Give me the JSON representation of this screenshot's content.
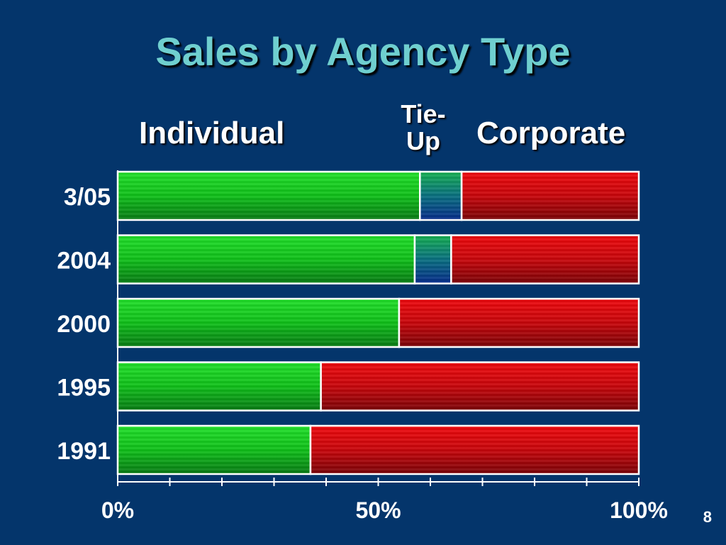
{
  "slide": {
    "title": "Sales by Agency Type",
    "page_number": "8"
  },
  "legend": {
    "individual": "Individual",
    "tieup_line1": "Tie-",
    "tieup_line2": "Up",
    "corporate": "Corporate"
  },
  "colors": {
    "background": "#04356b",
    "title": "#6fcfcf",
    "individual": "#12c41c",
    "tieup": "#0a6f8a",
    "corporate": "#c8060c",
    "bar_border": "#ffffff"
  },
  "chart_data": {
    "type": "bar",
    "orientation": "horizontal",
    "stacked": true,
    "categories": [
      "3/05",
      "2004",
      "2000",
      "1995",
      "1991"
    ],
    "series": [
      {
        "name": "Individual",
        "values": [
          58,
          57,
          54,
          39,
          37
        ]
      },
      {
        "name": "Tie-Up",
        "values": [
          8,
          7,
          0,
          0,
          0
        ]
      },
      {
        "name": "Corporate",
        "values": [
          34,
          36,
          46,
          61,
          63
        ]
      }
    ],
    "xlim": [
      0,
      100
    ],
    "x_ticks": [
      0,
      50,
      100
    ],
    "x_tick_labels": [
      "0%",
      "50%",
      "100%"
    ],
    "minor_tick_step": 10,
    "legend_placement": "top",
    "grid": false
  }
}
